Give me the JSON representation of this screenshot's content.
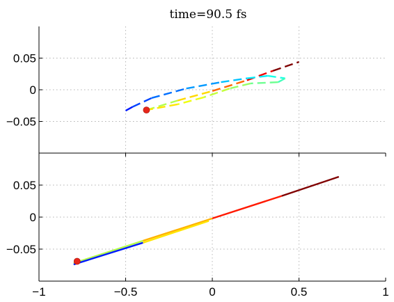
{
  "title": "time=90.5 fs",
  "chart_data": [
    {
      "type": "line",
      "panel": "top",
      "xlim": [
        -1,
        1
      ],
      "ylim": [
        -0.1,
        0.1
      ],
      "yticks": [
        -0.05,
        0,
        0.05
      ],
      "ytick_labels": [
        "−0.05",
        "0",
        "0.05"
      ],
      "grid": true,
      "colormap": "jet",
      "series": [
        {
          "style": "dashed",
          "x": [
            -0.38,
            -0.2,
            0.0,
            0.2,
            0.35,
            0.5
          ],
          "y": [
            -0.032,
            -0.017,
            -0.002,
            0.015,
            0.03,
            0.044
          ]
        },
        {
          "style": "dashed",
          "x": [
            -0.5,
            -0.46,
            -0.35,
            -0.15,
            0.05,
            0.2,
            0.32,
            0.42,
            0.38,
            0.22,
            0.1,
            -0.05,
            -0.2,
            -0.38
          ],
          "y": [
            -0.033,
            -0.027,
            -0.013,
            0.002,
            0.012,
            0.018,
            0.022,
            0.018,
            0.012,
            0.01,
            0.002,
            -0.012,
            -0.023,
            -0.032
          ]
        }
      ],
      "marker": {
        "x": -0.38,
        "y": -0.032,
        "color": "#e8261a"
      }
    },
    {
      "type": "line",
      "panel": "bottom",
      "xlim": [
        -1,
        1
      ],
      "ylim": [
        -0.1,
        0.1
      ],
      "xticks": [
        -1,
        -0.5,
        0,
        0.5,
        1
      ],
      "xtick_labels": [
        "−1",
        "−0.5",
        "0",
        "0.5",
        "1"
      ],
      "yticks": [
        -0.05,
        0,
        0.05
      ],
      "ytick_labels": [
        "−0.05",
        "0",
        "0.05"
      ],
      "grid": true,
      "colormap": "jet",
      "series": [
        {
          "style": "solid",
          "x": [
            -0.8,
            -0.4,
            0.0,
            0.4,
            0.73
          ],
          "y": [
            -0.072,
            -0.037,
            -0.002,
            0.033,
            0.063
          ]
        },
        {
          "style": "solid",
          "x": [
            -0.8,
            -0.4,
            -0.02
          ],
          "y": [
            -0.074,
            -0.04,
            -0.006
          ]
        }
      ],
      "marker": {
        "x": -0.78,
        "y": -0.069,
        "color": "#e8261a"
      }
    }
  ]
}
